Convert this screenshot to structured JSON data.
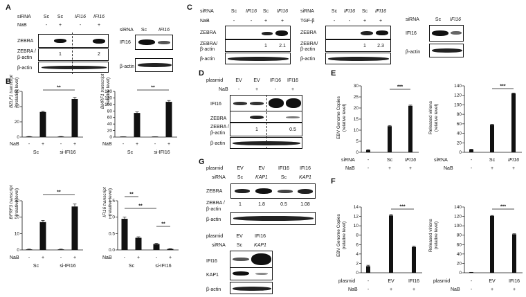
{
  "panel_letters": [
    "A",
    "B",
    "C",
    "D",
    "E",
    "F",
    "G"
  ],
  "A": {
    "left": {
      "siRNA_label": "siRNA",
      "siRNA": [
        "Sc",
        "Sc",
        "IFI16",
        "IFI16"
      ],
      "nab_label": "NaB",
      "nab": [
        "-",
        "+",
        "-",
        "+"
      ],
      "rows": [
        "ZEBRA",
        "ZEBRA /",
        "β-actin",
        "β-actin"
      ],
      "ratios": [
        "1",
        "2"
      ]
    },
    "right": {
      "siRNA_label": "siRNA",
      "siRNA": [
        "Sc",
        "IFI16"
      ],
      "rows": [
        "IFI16",
        "β-actin"
      ]
    }
  },
  "B": {
    "b1_ylabel": "BZLF1 transcript",
    "b2_ylabel": "BMRF1 transcript",
    "b3_ylabel": "BFRF3 transcript",
    "b4_ylabel": "IFI16 transcript",
    "rel": "(relative level)",
    "sig": "**",
    "nab_label": "NaB",
    "signs": [
      "-",
      "+",
      "-",
      "+"
    ],
    "groups": [
      "Sc",
      "si-IFI16"
    ]
  },
  "C": {
    "c1": {
      "siRNA_label": "siRNA",
      "siRNA": [
        "Sc",
        "IFI16",
        "Sc",
        "IFI16"
      ],
      "treat_label": "NaB",
      "treat": [
        "-",
        "-",
        "+",
        "+"
      ],
      "rows": [
        "ZEBRA",
        "ZEBRA/",
        "β-actin",
        "β-actin"
      ],
      "ratios": [
        "1",
        "2.1"
      ]
    },
    "c2": {
      "siRNA_label": "siRNA",
      "siRNA": [
        "Sc",
        "IFI16",
        "Sc",
        "IFI16"
      ],
      "treat_label": "TGF-β",
      "treat": [
        "-",
        "-",
        "+",
        "+"
      ],
      "rows": [
        "ZEBRA",
        "ZEBRA/",
        "β-actin",
        "β-actin"
      ],
      "ratios": [
        "1",
        "2.3"
      ]
    },
    "c3": {
      "siRNA_label": "siRNA",
      "siRNA": [
        "Sc",
        "IFI16"
      ],
      "rows": [
        "IFI16",
        "β-actin"
      ]
    }
  },
  "D": {
    "plasmid_label": "plasmid",
    "plasmid": [
      "EV",
      "EV",
      "IFI16",
      "IFI16"
    ],
    "nab_label": "NaB",
    "nab": [
      "-",
      "+",
      "-",
      "+"
    ],
    "rows": [
      "IFI16",
      "ZEBRA",
      "ZEBRA /",
      "β-actin",
      "β-actin"
    ],
    "ratios": [
      "1",
      "0.5"
    ]
  },
  "G": {
    "top": {
      "plasmid_label": "plasmid",
      "plasmid": [
        "EV",
        "EV",
        "IFI16",
        "IFI16"
      ],
      "siRNA_label": "siRNA",
      "siRNA": [
        "Sc",
        "KAP1",
        "Sc",
        "KAP1"
      ],
      "rows": [
        "ZEBRA",
        "ZEBRA /",
        "β-actin",
        "β-actin"
      ],
      "ratios": [
        "1",
        "1.8",
        "0.5",
        "1.08"
      ]
    },
    "bottom": {
      "plasmid_label": "plasmid",
      "plasmid": [
        "EV",
        "IFI16"
      ],
      "siRNA_label": "siRNA",
      "siRNA": [
        "Sc",
        "KAP1"
      ],
      "rows": [
        "IFI16",
        "KAP1",
        "β-actin"
      ]
    }
  },
  "E": {
    "e1_ylabel": "EBV Genome Copies",
    "e2_ylabel": "Released virions",
    "rel": "(relative  level)",
    "sig": "***",
    "row1_label": "siRNA",
    "row1": [
      "-",
      "Sc",
      "IFI16"
    ],
    "row2_label": "NaB",
    "row2": [
      "-",
      "+",
      "+"
    ]
  },
  "F": {
    "f1_ylabel": "EBV Genome Copies",
    "f2_ylabel": "Released virions",
    "rel": "(relative  level)",
    "sig": "***",
    "row1_label": "plasmid",
    "row1": [
      "-",
      "EV",
      "IFI16"
    ],
    "row2_label": "NaB",
    "row2": [
      "-",
      "+",
      "+"
    ]
  },
  "chart_data": [
    {
      "id": "B1",
      "type": "bar",
      "ylabel": "BZLF1 transcript (relative level)",
      "ylim": [
        0,
        60
      ],
      "yticks": [
        0,
        20,
        40,
        60
      ],
      "categories": [
        "Sc -",
        "Sc +",
        "si-IFI16 -",
        "si-IFI16 +"
      ],
      "values": [
        0.5,
        33,
        0.5,
        50
      ],
      "errors": [
        0.3,
        1,
        0.3,
        2
      ]
    },
    {
      "id": "B2",
      "type": "bar",
      "ylabel": "BMRF1 transcript (relative level)",
      "ylim": [
        0,
        140
      ],
      "yticks": [
        0,
        20,
        40,
        60,
        80,
        100,
        120,
        140
      ],
      "categories": [
        "Sc -",
        "Sc +",
        "si-IFI16 -",
        "si-IFI16 +"
      ],
      "values": [
        0.5,
        74,
        0.5,
        108
      ],
      "errors": [
        0.3,
        3,
        0.3,
        4
      ]
    },
    {
      "id": "B3",
      "type": "bar",
      "ylabel": "BFRF3 transcript (relative level)",
      "ylim": [
        0,
        30
      ],
      "yticks": [
        0,
        10,
        20,
        30
      ],
      "categories": [
        "Sc -",
        "Sc +",
        "si-IFI16 -",
        "si-IFI16 +"
      ],
      "values": [
        0.3,
        17,
        0.3,
        26.5
      ],
      "errors": [
        0.2,
        1,
        0.2,
        1.5
      ]
    },
    {
      "id": "B4",
      "type": "bar",
      "ylabel": "IFI16 transcript (relative level)",
      "ylim": [
        0,
        1.5
      ],
      "yticks": [
        0,
        0.5,
        1,
        1.5
      ],
      "categories": [
        "Sc -",
        "Sc +",
        "si-IFI16 -",
        "si-IFI16 +"
      ],
      "values": [
        0.95,
        0.37,
        0.18,
        0.03
      ],
      "errors": [
        0.05,
        0.03,
        0.02,
        0.01
      ]
    },
    {
      "id": "E1",
      "type": "bar",
      "ylabel": "EBV Genome Copies (relative level)",
      "ylim": [
        0,
        30
      ],
      "yticks": [
        0,
        5,
        10,
        15,
        20,
        25,
        30
      ],
      "categories": [
        "-",
        "Sc",
        "IFI16"
      ],
      "values": [
        1,
        11.8,
        21
      ],
      "errors": [
        0.2,
        0.3,
        0.3
      ]
    },
    {
      "id": "E2",
      "type": "bar",
      "ylabel": "Released virions (relative level)",
      "ylim": [
        0,
        140
      ],
      "yticks": [
        0,
        20,
        40,
        60,
        80,
        100,
        120,
        140
      ],
      "categories": [
        "-",
        "Sc",
        "IFI16"
      ],
      "values": [
        6,
        58,
        124
      ],
      "errors": [
        0.5,
        1,
        1
      ]
    },
    {
      "id": "F1",
      "type": "bar",
      "ylabel": "EBV Genome Copies (relative level)",
      "ylim": [
        0,
        14
      ],
      "yticks": [
        0,
        2,
        4,
        6,
        8,
        10,
        12,
        14
      ],
      "categories": [
        "-",
        "EV",
        "IFI16"
      ],
      "values": [
        1.4,
        12.2,
        5.5
      ],
      "errors": [
        0.2,
        0.2,
        0.2
      ]
    },
    {
      "id": "F2",
      "type": "bar",
      "ylabel": "Released virions (relative level)",
      "ylim": [
        0,
        140
      ],
      "yticks": [
        0,
        20,
        40,
        60,
        80,
        100,
        120,
        140
      ],
      "categories": [
        "-",
        "EV",
        "IFI16"
      ],
      "values": [
        0.8,
        121,
        82
      ],
      "errors": [
        0.2,
        1,
        1
      ]
    }
  ]
}
